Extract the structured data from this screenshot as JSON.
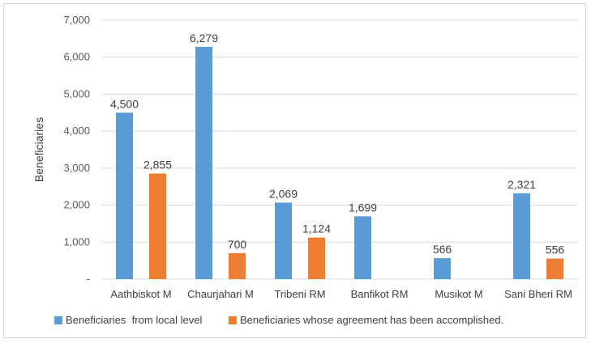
{
  "chart_data": {
    "type": "bar",
    "title": "",
    "xlabel": "",
    "ylabel": "Beneficiaries",
    "ylim": [
      0,
      7000
    ],
    "yticks": [
      "-",
      "1,000",
      "2,000",
      "3,000",
      "4,000",
      "5,000",
      "6,000",
      "7,000"
    ],
    "grid": true,
    "legend_position": "bottom",
    "categories": [
      "Aathbiskot M",
      "Chaurjahari M",
      "Tribeni RM",
      "Banfikot RM",
      "Musikot M",
      "Sani Bheri RM"
    ],
    "series": [
      {
        "name": "Beneficiaries  from local level",
        "color": "#5b9bd5",
        "values": [
          4500,
          6279,
          2069,
          1699,
          566,
          2321
        ],
        "labels": [
          "4,500",
          "6,279",
          "2,069",
          "1,699",
          "566",
          "2,321"
        ]
      },
      {
        "name": "Beneficiaries whose agreement has been accomplished.",
        "color": "#ed7d31",
        "values": [
          2855,
          700,
          1124,
          null,
          null,
          556
        ],
        "labels": [
          "2,855",
          "700",
          "1,124",
          "",
          "",
          "556"
        ]
      }
    ]
  }
}
